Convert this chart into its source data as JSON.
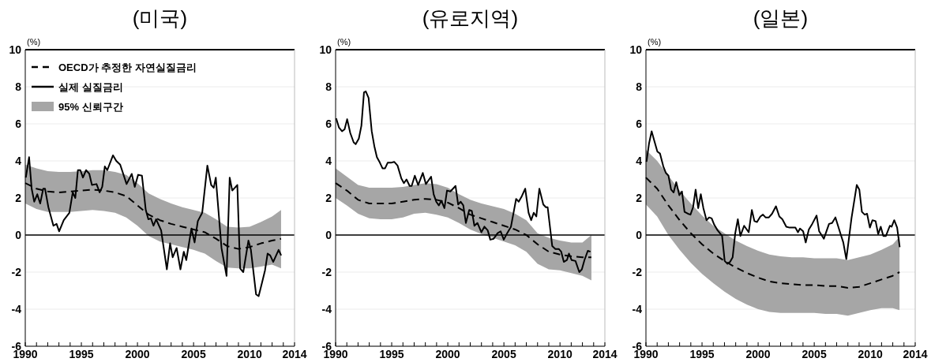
{
  "chart_data": [
    {
      "type": "line",
      "title": "(미국)",
      "ylabel": "(%)",
      "xlim": [
        1990,
        2014
      ],
      "ylim": [
        -6,
        10
      ],
      "xticks": [
        1990,
        {
          "value": 1991,
          "label": null
        },
        {
          "value": 1992,
          "label": null
        },
        {
          "value": 1993,
          "label": null
        },
        {
          "value": 1994,
          "label": null
        },
        1995,
        {
          "value": 1996,
          "label": null
        },
        {
          "value": 1997,
          "label": null
        },
        {
          "value": 1998,
          "label": null
        },
        {
          "value": 1999,
          "label": null
        },
        2000,
        {
          "value": 2001,
          "label": null
        },
        {
          "value": 2002,
          "label": null
        },
        {
          "value": 2003,
          "label": null
        },
        {
          "value": 2004,
          "label": null
        },
        2005,
        {
          "value": 2006,
          "label": null
        },
        {
          "value": 2007,
          "label": null
        },
        {
          "value": 2008,
          "label": null
        },
        {
          "value": 2009,
          "label": null
        },
        2010,
        {
          "value": 2011,
          "label": null
        },
        {
          "value": 2012,
          "label": null
        },
        {
          "value": 2013,
          "label": null
        },
        2014
      ],
      "yticks": [
        -6,
        -4,
        -2,
        0,
        2,
        4,
        6,
        8,
        10
      ],
      "grid": "y",
      "legend": "top left",
      "annotations": [
        "95% 신뢰구간"
      ],
      "ref_lines": [
        {
          "axis": "y",
          "value": 0,
          "color": "#000000"
        }
      ],
      "series": [
        {
          "name": "OECD가 추정한 자연실질금리",
          "color": "#000000",
          "line_style": "dashed",
          "x": [
            1990,
            1991,
            1992,
            1993,
            1994,
            1995,
            1996,
            1997,
            1998,
            1999,
            2000,
            2001,
            2002,
            2003,
            2004,
            2005,
            2006,
            2007,
            2008,
            2009,
            2010,
            2011,
            2012,
            2012.8
          ],
          "values": [
            2.8,
            2.5,
            2.35,
            2.3,
            2.35,
            2.4,
            2.45,
            2.4,
            2.3,
            2.1,
            1.6,
            1.1,
            0.8,
            0.6,
            0.45,
            0.3,
            0.15,
            -0.2,
            -0.6,
            -0.75,
            -0.65,
            -0.45,
            -0.3,
            -0.2
          ],
          "upper": [
            3.8,
            3.6,
            3.45,
            3.4,
            3.4,
            3.45,
            3.5,
            3.5,
            3.4,
            3.25,
            2.8,
            2.25,
            1.95,
            1.7,
            1.5,
            1.35,
            1.2,
            0.85,
            0.45,
            0.4,
            0.45,
            0.7,
            1.0,
            1.35
          ],
          "lower": [
            1.7,
            1.4,
            1.25,
            1.25,
            1.25,
            1.3,
            1.35,
            1.3,
            1.2,
            0.95,
            0.5,
            -0.05,
            -0.35,
            -0.5,
            -0.65,
            -0.8,
            -1.0,
            -1.4,
            -1.75,
            -1.8,
            -1.8,
            -1.7,
            -1.6,
            -1.8
          ]
        },
        {
          "name": "실제 실질금리",
          "color": "#000000",
          "line_style": "solid",
          "x": [
            1990.05,
            1990.34,
            1990.57,
            1990.8,
            1991.07,
            1991.33,
            1991.6,
            1991.76,
            1992.06,
            1992.51,
            1992.79,
            1993.02,
            1993.43,
            1993.93,
            1994.23,
            1994.46,
            1994.69,
            1994.91,
            1995.14,
            1995.42,
            1995.71,
            1995.94,
            1996.35,
            1996.63,
            1996.86,
            1997.09,
            1997.31,
            1997.82,
            1998.11,
            1998.46,
            1999.03,
            1999.49,
            1999.76,
            2000.06,
            2000.4,
            2000.74,
            2000.97,
            2001.2,
            2001.43,
            2001.66,
            2002.11,
            2002.62,
            2002.91,
            2003.14,
            2003.49,
            2003.83,
            2004.13,
            2004.35,
            2004.81,
            2005.09,
            2005.38,
            2005.77,
            2006.23,
            2006.57,
            2006.8,
            2006.98,
            2007.49,
            2007.94,
            2008.22,
            2008.45,
            2008.9,
            2009.15,
            2009.43,
            2009.89,
            2010.11,
            2010.57,
            2010.8,
            2011.07,
            2011.37,
            2011.6,
            2011.83,
            2012.1,
            2012.58,
            2012.81
          ],
          "values": [
            3.1,
            4.2,
            2.5,
            1.8,
            2.2,
            1.7,
            2.5,
            2.5,
            1.5,
            0.5,
            0.6,
            0.2,
            0.8,
            1.2,
            2.3,
            2.0,
            3.5,
            3.5,
            3.1,
            3.5,
            3.3,
            2.7,
            2.75,
            2.3,
            2.6,
            3.7,
            3.5,
            4.3,
            4.0,
            3.8,
            2.75,
            3.3,
            2.6,
            3.25,
            3.2,
            1.35,
            0.85,
            0.9,
            0.5,
            0.85,
            0.25,
            -1.85,
            -0.45,
            -1.2,
            -0.7,
            -1.85,
            -0.9,
            -1.35,
            0.35,
            -0.4,
            0.75,
            1.2,
            3.75,
            2.7,
            2.55,
            3.1,
            -0.7,
            -2.2,
            3.1,
            2.4,
            2.7,
            -1.8,
            -2.0,
            -0.3,
            -0.8,
            -3.2,
            -3.3,
            -2.65,
            -1.9,
            -1.0,
            -1.1,
            -1.45,
            -0.8,
            -1.1
          ]
        }
      ]
    },
    {
      "type": "line",
      "title": "(유로지역)",
      "ylabel": "(%)",
      "xlim": [
        1990,
        2014
      ],
      "ylim": [
        -6,
        10
      ],
      "xticks": [
        1990,
        {
          "value": 1991,
          "label": null
        },
        {
          "value": 1992,
          "label": null
        },
        {
          "value": 1993,
          "label": null
        },
        {
          "value": 1994,
          "label": null
        },
        1995,
        {
          "value": 1996,
          "label": null
        },
        {
          "value": 1997,
          "label": null
        },
        {
          "value": 1998,
          "label": null
        },
        {
          "value": 1999,
          "label": null
        },
        2000,
        {
          "value": 2001,
          "label": null
        },
        {
          "value": 2002,
          "label": null
        },
        {
          "value": 2003,
          "label": null
        },
        {
          "value": 2004,
          "label": null
        },
        2005,
        {
          "value": 2006,
          "label": null
        },
        {
          "value": 2007,
          "label": null
        },
        {
          "value": 2008,
          "label": null
        },
        {
          "value": 2009,
          "label": null
        },
        2010,
        {
          "value": 2011,
          "label": null
        },
        {
          "value": 2012,
          "label": null
        },
        {
          "value": 2013,
          "label": null
        },
        2014
      ],
      "yticks": [
        -6,
        -4,
        -2,
        0,
        2,
        4,
        6,
        8,
        10
      ],
      "grid": "y",
      "ref_lines": [
        {
          "axis": "y",
          "value": 0,
          "color": "#000000"
        }
      ],
      "series": [
        {
          "color": "#000000",
          "line_style": "dashed",
          "x": [
            1990,
            1991,
            1992,
            1993,
            1994,
            1995,
            1996,
            1997,
            1998,
            1999,
            2000,
            2001,
            2002,
            2003,
            2004,
            2005,
            2006,
            2007,
            2008,
            2009,
            2010,
            2011,
            2012,
            2012.8
          ],
          "values": [
            2.8,
            2.4,
            1.9,
            1.7,
            1.7,
            1.7,
            1.8,
            1.9,
            1.95,
            1.9,
            1.75,
            1.45,
            1.1,
            0.9,
            0.7,
            0.5,
            0.3,
            0.0,
            -0.5,
            -0.9,
            -1.05,
            -1.15,
            -1.2,
            -1.2
          ],
          "upper": [
            3.6,
            3.15,
            2.7,
            2.55,
            2.55,
            2.55,
            2.6,
            2.7,
            2.8,
            2.75,
            2.55,
            2.2,
            1.9,
            1.7,
            1.55,
            1.4,
            1.15,
            0.8,
            0.1,
            -0.15,
            -0.3,
            -0.4,
            -0.4,
            0.0
          ],
          "lower": [
            2.0,
            1.6,
            1.15,
            0.9,
            0.85,
            0.85,
            0.95,
            1.15,
            1.2,
            1.1,
            0.95,
            0.65,
            0.3,
            0.05,
            -0.15,
            -0.35,
            -0.55,
            -0.9,
            -1.55,
            -1.85,
            -1.9,
            -2.05,
            -2.2,
            -2.45
          ]
        },
        {
          "color": "#000000",
          "line_style": "solid",
          "x": [
            1990.05,
            1990.3,
            1990.57,
            1990.8,
            1991.03,
            1991.31,
            1991.61,
            1991.79,
            1992.07,
            1992.3,
            1992.53,
            1992.69,
            1992.94,
            1993.22,
            1993.45,
            1993.68,
            1993.95,
            1994.18,
            1994.41,
            1994.64,
            1994.94,
            1995.22,
            1995.52,
            1995.86,
            1996.09,
            1996.32,
            1996.6,
            1996.78,
            1997.06,
            1997.36,
            1997.77,
            1998.05,
            1998.51,
            1998.74,
            1998.97,
            1999.2,
            1999.43,
            1999.7,
            1999.93,
            2000.23,
            2000.46,
            2000.69,
            2000.92,
            2001.15,
            2001.38,
            2001.61,
            2001.91,
            2002.14,
            2002.37,
            2002.64,
            2002.99,
            2003.26,
            2003.56,
            2003.79,
            2004.09,
            2004.44,
            2004.71,
            2004.99,
            2005.29,
            2005.63,
            2006.09,
            2006.32,
            2006.6,
            2006.9,
            2007.2,
            2007.43,
            2007.66,
            2007.89,
            2008.16,
            2008.51,
            2008.74,
            2008.9,
            2009.31,
            2009.59,
            2009.89,
            2010.11,
            2010.34,
            2010.62,
            2010.8,
            2011.03,
            2011.38,
            2011.72,
            2011.95,
            2012.18,
            2012.48,
            2012.71
          ],
          "values": [
            6.3,
            5.8,
            5.6,
            5.7,
            6.25,
            5.5,
            5.0,
            4.9,
            5.2,
            5.9,
            7.7,
            7.75,
            7.4,
            5.6,
            4.8,
            4.2,
            3.9,
            3.6,
            3.6,
            3.9,
            3.9,
            3.95,
            3.75,
            3.05,
            2.8,
            3.0,
            2.65,
            2.65,
            3.2,
            2.7,
            3.35,
            2.75,
            3.15,
            2.2,
            1.8,
            1.6,
            1.85,
            1.45,
            2.4,
            2.35,
            2.5,
            2.65,
            1.65,
            1.8,
            1.6,
            0.65,
            1.35,
            1.3,
            0.5,
            0.65,
            0.15,
            0.45,
            0.25,
            -0.25,
            -0.2,
            0.1,
            0.2,
            -0.25,
            0.1,
            0.45,
            1.95,
            1.8,
            2.1,
            2.5,
            1.2,
            0.8,
            1.2,
            1.0,
            2.5,
            1.65,
            1.5,
            1.5,
            -0.6,
            -0.75,
            -0.75,
            -0.9,
            -1.45,
            -1.35,
            -1.0,
            -1.35,
            -1.4,
            -2.0,
            -1.85,
            -1.35,
            -0.85,
            -0.9
          ]
        }
      ]
    },
    {
      "type": "line",
      "title": "(일본)",
      "ylabel": "(%)",
      "xlim": [
        1990,
        2014
      ],
      "ylim": [
        -6,
        10
      ],
      "xticks": [
        1990,
        {
          "value": 1991,
          "label": null
        },
        {
          "value": 1992,
          "label": null
        },
        {
          "value": 1993,
          "label": null
        },
        {
          "value": 1994,
          "label": null
        },
        1995,
        {
          "value": 1996,
          "label": null
        },
        {
          "value": 1997,
          "label": null
        },
        {
          "value": 1998,
          "label": null
        },
        {
          "value": 1999,
          "label": null
        },
        2000,
        {
          "value": 2001,
          "label": null
        },
        {
          "value": 2002,
          "label": null
        },
        {
          "value": 2003,
          "label": null
        },
        {
          "value": 2004,
          "label": null
        },
        2005,
        {
          "value": 2006,
          "label": null
        },
        {
          "value": 2007,
          "label": null
        },
        {
          "value": 2008,
          "label": null
        },
        {
          "value": 2009,
          "label": null
        },
        2010,
        {
          "value": 2011,
          "label": null
        },
        {
          "value": 2012,
          "label": null
        },
        {
          "value": 2013,
          "label": null
        },
        2014
      ],
      "yticks": [
        -6,
        -4,
        -2,
        0,
        2,
        4,
        6,
        8,
        10
      ],
      "grid": "y",
      "ref_lines": [
        {
          "axis": "y",
          "value": 0,
          "color": "#000000"
        }
      ],
      "series": [
        {
          "color": "#000000",
          "line_style": "dashed",
          "x": [
            1990,
            1991,
            1992,
            1993,
            1994,
            1995,
            1996,
            1997,
            1998,
            1999,
            2000,
            2001,
            2002,
            2003,
            2004,
            2005,
            2006,
            2007,
            2008,
            2009,
            2010,
            2011,
            2012,
            2012.6
          ],
          "values": [
            3.1,
            2.5,
            1.6,
            0.8,
            0.1,
            -0.5,
            -1.0,
            -1.4,
            -1.75,
            -2.05,
            -2.3,
            -2.5,
            -2.6,
            -2.65,
            -2.7,
            -2.7,
            -2.75,
            -2.75,
            -2.85,
            -2.8,
            -2.6,
            -2.4,
            -2.2,
            -2.0
          ],
          "upper": [
            4.6,
            4.0,
            3.2,
            2.4,
            1.7,
            1.05,
            0.5,
            0.1,
            -0.3,
            -0.6,
            -0.85,
            -1.05,
            -1.15,
            -1.2,
            -1.2,
            -1.25,
            -1.25,
            -1.25,
            -1.35,
            -1.2,
            -1.05,
            -0.8,
            -0.5,
            -0.1
          ],
          "lower": [
            1.65,
            1.0,
            0.0,
            -0.8,
            -1.5,
            -2.1,
            -2.6,
            -3.05,
            -3.45,
            -3.75,
            -4.0,
            -4.15,
            -4.2,
            -4.2,
            -4.2,
            -4.2,
            -4.25,
            -4.25,
            -4.35,
            -4.2,
            -4.05,
            -3.95,
            -3.95,
            -4.05
          ]
        },
        {
          "color": "#000000",
          "line_style": "solid",
          "x": [
            1990.05,
            1990.28,
            1990.51,
            1990.74,
            1991.02,
            1991.25,
            1991.55,
            1991.78,
            1992.01,
            1992.24,
            1992.47,
            1992.7,
            1992.98,
            1993.21,
            1993.44,
            1993.74,
            1993.97,
            1994.2,
            1994.43,
            1994.66,
            1994.89,
            1995.12,
            1995.4,
            1995.63,
            1995.86,
            1996.09,
            1996.39,
            1996.79,
            1997.02,
            1997.27,
            1997.5,
            1997.73,
            1997.96,
            1998.19,
            1998.42,
            1998.75,
            1999.16,
            1999.44,
            1999.67,
            1999.9,
            2000.2,
            2000.43,
            2000.66,
            2000.96,
            2001.24,
            2001.59,
            2001.89,
            2002.16,
            2002.51,
            2002.81,
            2003.04,
            2003.32,
            2003.55,
            2003.73,
            2004.01,
            2004.24,
            2004.52,
            2004.82,
            2005.21,
            2005.44,
            2005.86,
            2006.32,
            2006.59,
            2006.89,
            2007.35,
            2007.59,
            2007.86,
            2008.32,
            2008.79,
            2009.02,
            2009.25,
            2009.5,
            2009.71,
            2009.96,
            2010.19,
            2010.47,
            2010.7,
            2010.93,
            2011.16,
            2011.39,
            2011.74,
            2011.9,
            2012.13,
            2012.39,
            2012.62
          ],
          "values": [
            3.95,
            4.95,
            5.6,
            5.1,
            4.5,
            4.4,
            3.7,
            3.35,
            3.2,
            2.45,
            2.3,
            2.85,
            2.15,
            2.35,
            1.25,
            1.15,
            1.1,
            1.5,
            2.45,
            1.45,
            2.2,
            1.45,
            0.8,
            0.95,
            0.9,
            0.55,
            0.25,
            -0.05,
            -1.4,
            -1.55,
            -1.45,
            -1.2,
            0.1,
            0.85,
            -0.05,
            0.5,
            0.15,
            1.35,
            0.75,
            0.7,
            1.0,
            1.1,
            0.95,
            0.95,
            1.15,
            1.55,
            1.0,
            0.85,
            0.45,
            0.4,
            0.4,
            0.4,
            0.15,
            0.35,
            0.2,
            -0.4,
            0.3,
            0.6,
            1.05,
            0.2,
            -0.2,
            0.6,
            0.65,
            0.95,
            0.05,
            -0.4,
            -1.3,
            0.9,
            2.7,
            2.45,
            1.25,
            1.1,
            1.15,
            0.4,
            0.8,
            0.75,
            0.05,
            0.45,
            -0.05,
            -0.05,
            0.5,
            0.45,
            0.8,
            0.4,
            -0.65
          ]
        }
      ]
    }
  ]
}
